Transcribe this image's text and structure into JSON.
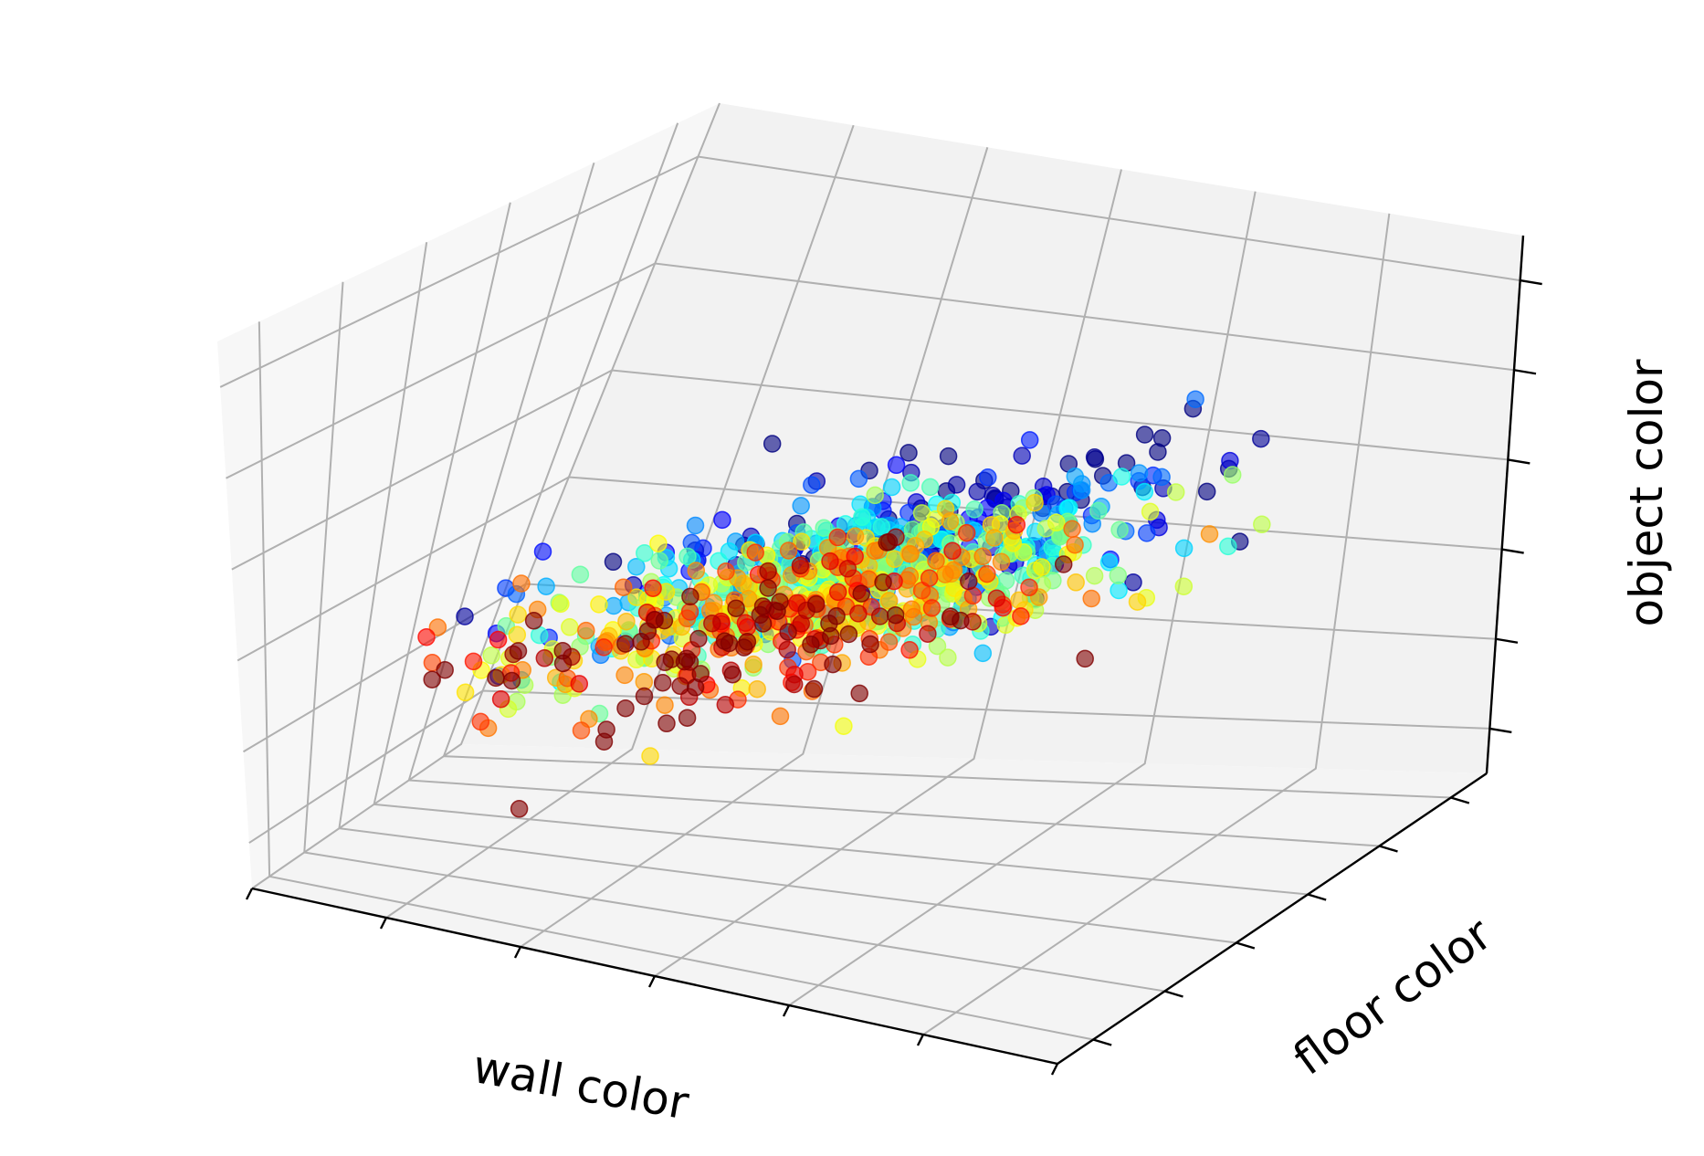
{
  "chart_data": {
    "type": "scatter",
    "projection": "3d",
    "title": "",
    "xlabel": "wall color",
    "ylabel": "floor color",
    "zlabel": "object color",
    "tick_labels_visible": false,
    "grid": true,
    "xlim": [
      -3,
      3
    ],
    "ylim": [
      -3,
      3
    ],
    "zlim": [
      -3,
      3
    ],
    "colormap": "jet",
    "alpha": 0.6,
    "point_count": 1000,
    "distribution": {
      "x_mean": 0,
      "x_sd": 1,
      "y_mean": 0,
      "y_sd": 0.8,
      "z_mean": 0,
      "z_sd": 0.6,
      "z_x_correlation": 0.8,
      "color_by": "y"
    },
    "colors": {
      "pane": "#f2f2f2",
      "grid": "#b0b0b0",
      "axis": "#000000"
    }
  }
}
